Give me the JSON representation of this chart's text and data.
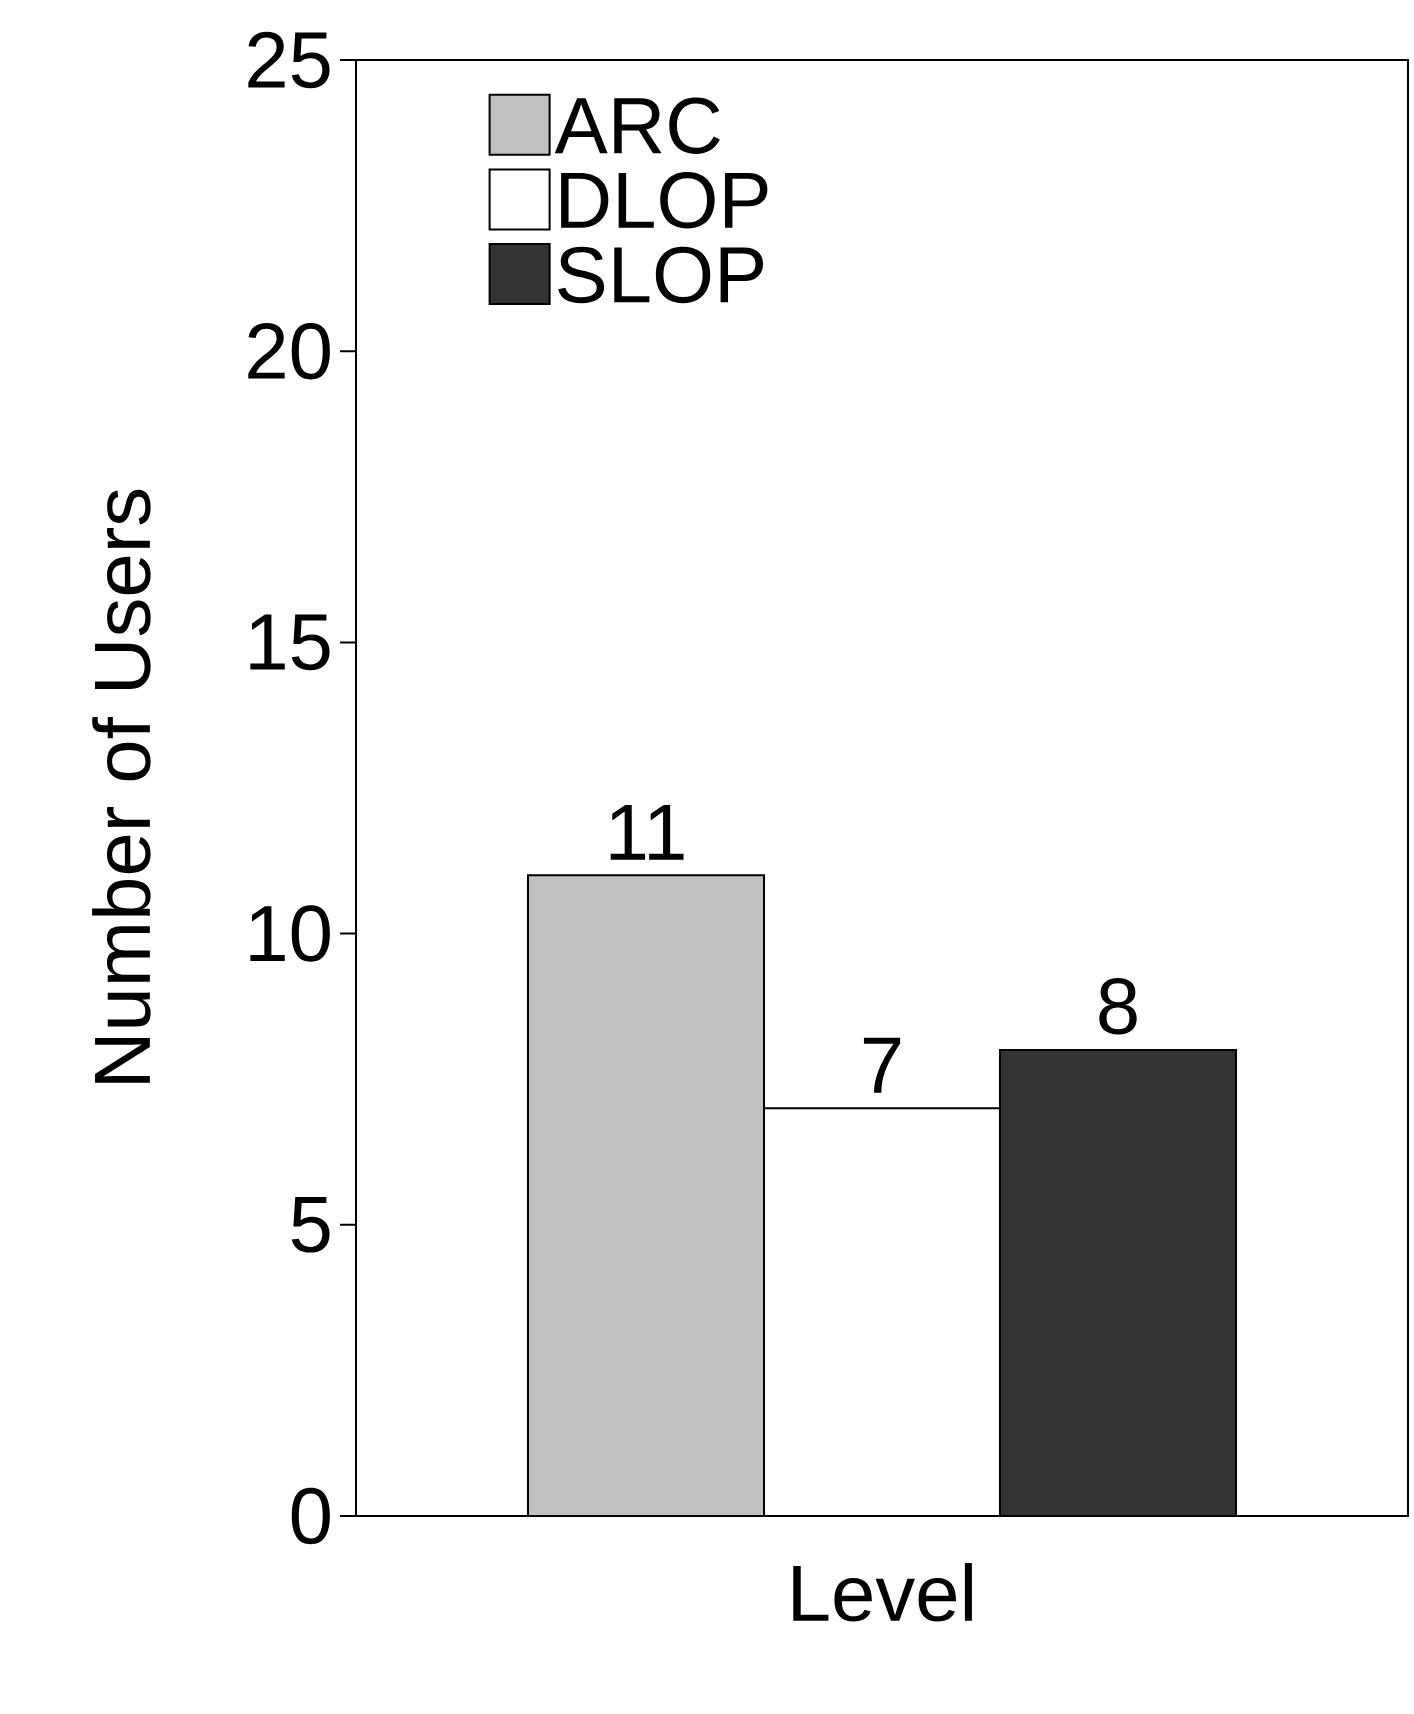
{
  "chart_data": {
    "type": "bar",
    "xlabel": "Level",
    "ylabel": "Number of Users",
    "categories": [
      null
    ],
    "series": [
      {
        "name": "ARC",
        "color": "#c0c0c0",
        "values": [
          11
        ]
      },
      {
        "name": "DLOP",
        "color": "#ffffff",
        "values": [
          7
        ]
      },
      {
        "name": "SLOP",
        "color": "#333333",
        "values": [
          8
        ]
      }
    ],
    "ylim": [
      0,
      25
    ],
    "yticks": [
      0,
      5,
      10,
      15,
      20,
      25
    ],
    "data_labels": true,
    "legend": "top left"
  }
}
